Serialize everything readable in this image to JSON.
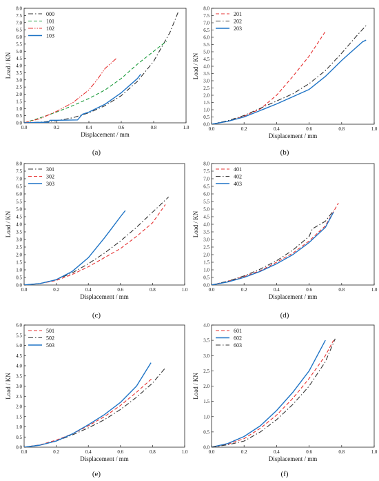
{
  "figure": {
    "panel_labels": [
      "(a)",
      "(b)",
      "(c)",
      "(d)",
      "(e)",
      "(f)"
    ]
  },
  "chart_data": [
    {
      "panel": "(a)",
      "type": "line",
      "xlabel": "Displacement / mm",
      "ylabel": "Load / KN",
      "xlim": [
        0,
        1.0
      ],
      "ylim": [
        0,
        8.0
      ],
      "xticks": [
        "0.0",
        "0.2",
        "0.4",
        "0.6",
        "0.8",
        "1.0"
      ],
      "yticks": [
        "0.0",
        "0.5",
        "1.0",
        "1.5",
        "2.0",
        "2.5",
        "3.0",
        "3.5",
        "4.0",
        "4.5",
        "5.0",
        "5.5",
        "6.0",
        "6.5",
        "7.0",
        "7.5",
        "8.0"
      ],
      "grid": false,
      "legend_position": "top-left",
      "series": [
        {
          "name": "000",
          "color": "#333333",
          "dash": "dashdot",
          "points": [
            [
              0,
              0
            ],
            [
              0.1,
              0.05
            ],
            [
              0.2,
              0.15
            ],
            [
              0.3,
              0.35
            ],
            [
              0.4,
              0.7
            ],
            [
              0.5,
              1.2
            ],
            [
              0.6,
              1.9
            ],
            [
              0.7,
              2.9
            ],
            [
              0.8,
              4.3
            ],
            [
              0.9,
              6.3
            ],
            [
              0.95,
              7.7
            ]
          ]
        },
        {
          "name": "101",
          "color": "#1a9a3a",
          "dash": "dashed",
          "points": [
            [
              0,
              0
            ],
            [
              0.1,
              0.35
            ],
            [
              0.2,
              0.75
            ],
            [
              0.3,
              1.2
            ],
            [
              0.4,
              1.7
            ],
            [
              0.5,
              2.3
            ],
            [
              0.6,
              3.1
            ],
            [
              0.7,
              4.1
            ],
            [
              0.8,
              5.0
            ],
            [
              0.88,
              5.7
            ]
          ]
        },
        {
          "name": "102",
          "color": "#e63030",
          "dash": "dashdotdot",
          "points": [
            [
              0,
              0
            ],
            [
              0.1,
              0.3
            ],
            [
              0.2,
              0.8
            ],
            [
              0.3,
              1.4
            ],
            [
              0.4,
              2.3
            ],
            [
              0.45,
              3.0
            ],
            [
              0.5,
              3.8
            ],
            [
              0.57,
              4.5
            ]
          ]
        },
        {
          "name": "103",
          "color": "#1f74c6",
          "dash": "solid",
          "points": [
            [
              0,
              0
            ],
            [
              0.15,
              0.05
            ],
            [
              0.16,
              0.18
            ],
            [
              0.2,
              0.18
            ],
            [
              0.33,
              0.2
            ],
            [
              0.36,
              0.6
            ],
            [
              0.4,
              0.75
            ],
            [
              0.5,
              1.3
            ],
            [
              0.6,
              2.1
            ],
            [
              0.7,
              3.1
            ],
            [
              0.72,
              3.4
            ]
          ]
        }
      ]
    },
    {
      "panel": "(b)",
      "type": "line",
      "xlabel": "Displacement / mm",
      "ylabel": "Load / KN",
      "xlim": [
        0,
        1.0
      ],
      "ylim": [
        0,
        8.0
      ],
      "xticks": [
        "0.0",
        "0.2",
        "0.4",
        "0.6",
        "0.8",
        "1.0"
      ],
      "yticks": [
        "0.0",
        "0.5",
        "1.0",
        "1.5",
        "2.0",
        "2.5",
        "3.0",
        "3.5",
        "4.0",
        "4.5",
        "5.0",
        "5.5",
        "6.0",
        "6.5",
        "7.0",
        "7.5",
        "8.0"
      ],
      "grid": false,
      "legend_position": "top-left",
      "series": [
        {
          "name": "201",
          "color": "#e63030",
          "dash": "dashed",
          "points": [
            [
              0,
              0
            ],
            [
              0.1,
              0.2
            ],
            [
              0.2,
              0.55
            ],
            [
              0.3,
              1.05
            ],
            [
              0.4,
              2.0
            ],
            [
              0.5,
              3.3
            ],
            [
              0.6,
              4.7
            ],
            [
              0.7,
              6.4
            ]
          ]
        },
        {
          "name": "202",
          "color": "#333333",
          "dash": "dashdot",
          "points": [
            [
              0,
              0
            ],
            [
              0.1,
              0.25
            ],
            [
              0.2,
              0.6
            ],
            [
              0.3,
              1.1
            ],
            [
              0.4,
              1.6
            ],
            [
              0.5,
              2.1
            ],
            [
              0.6,
              2.8
            ],
            [
              0.7,
              3.7
            ],
            [
              0.8,
              4.9
            ],
            [
              0.9,
              6.2
            ],
            [
              0.95,
              6.8
            ]
          ]
        },
        {
          "name": "203",
          "color": "#1f74c6",
          "dash": "solid",
          "points": [
            [
              0,
              0
            ],
            [
              0.1,
              0.2
            ],
            [
              0.2,
              0.5
            ],
            [
              0.3,
              0.95
            ],
            [
              0.4,
              1.4
            ],
            [
              0.5,
              1.9
            ],
            [
              0.6,
              2.4
            ],
            [
              0.7,
              3.3
            ],
            [
              0.8,
              4.4
            ],
            [
              0.9,
              5.4
            ],
            [
              0.93,
              5.7
            ],
            [
              0.95,
              5.8
            ]
          ]
        }
      ]
    },
    {
      "panel": "(c)",
      "type": "line",
      "xlabel": "Displacement / mm",
      "ylabel": "Load / KN",
      "xlim": [
        0,
        1.0
      ],
      "ylim": [
        0,
        8.0
      ],
      "xticks": [
        "0.0",
        "0.2",
        "0.4",
        "0.6",
        "0.8",
        "1.0"
      ],
      "yticks": [
        "0.0",
        "0.5",
        "1.0",
        "1.5",
        "2.0",
        "2.5",
        "3.0",
        "3.5",
        "4.0",
        "4.5",
        "5.0",
        "5.5",
        "6.0",
        "6.5",
        "7.0",
        "7.5",
        "8.0"
      ],
      "grid": false,
      "legend_position": "top-left",
      "series": [
        {
          "name": "301",
          "color": "#333333",
          "dash": "dashdot",
          "points": [
            [
              0,
              0
            ],
            [
              0.1,
              0.1
            ],
            [
              0.2,
              0.35
            ],
            [
              0.3,
              0.8
            ],
            [
              0.4,
              1.4
            ],
            [
              0.5,
              2.1
            ],
            [
              0.6,
              2.9
            ],
            [
              0.7,
              3.8
            ],
            [
              0.8,
              4.8
            ],
            [
              0.9,
              5.8
            ]
          ]
        },
        {
          "name": "302",
          "color": "#e63030",
          "dash": "dashed",
          "points": [
            [
              0,
              0
            ],
            [
              0.1,
              0.1
            ],
            [
              0.2,
              0.3
            ],
            [
              0.3,
              0.7
            ],
            [
              0.4,
              1.2
            ],
            [
              0.5,
              1.8
            ],
            [
              0.6,
              2.4
            ],
            [
              0.7,
              3.2
            ],
            [
              0.8,
              4.1
            ],
            [
              0.88,
              5.3
            ]
          ]
        },
        {
          "name": "303",
          "color": "#1f74c6",
          "dash": "solid",
          "points": [
            [
              0,
              0
            ],
            [
              0.1,
              0.1
            ],
            [
              0.2,
              0.35
            ],
            [
              0.3,
              0.9
            ],
            [
              0.4,
              1.8
            ],
            [
              0.5,
              3.1
            ],
            [
              0.55,
              3.8
            ],
            [
              0.6,
              4.5
            ],
            [
              0.63,
              4.9
            ]
          ]
        }
      ]
    },
    {
      "panel": "(d)",
      "type": "line",
      "xlabel": "Displacement / mm",
      "ylabel": "Load / KN",
      "xlim": [
        0,
        1.0
      ],
      "ylim": [
        0,
        8.0
      ],
      "xticks": [
        "0.0",
        "0.2",
        "0.4",
        "0.6",
        "0.8",
        "1.0"
      ],
      "yticks": [
        "0.0",
        "0.5",
        "1.0",
        "1.5",
        "2.0",
        "2.5",
        "3.0",
        "3.5",
        "4.0",
        "4.5",
        "5.0",
        "5.5",
        "6.0",
        "6.5",
        "7.0",
        "7.5",
        "8.0"
      ],
      "grid": false,
      "legend_position": "top-left",
      "series": [
        {
          "name": "401",
          "color": "#e63030",
          "dash": "dashed",
          "points": [
            [
              0,
              0
            ],
            [
              0.1,
              0.25
            ],
            [
              0.2,
              0.55
            ],
            [
              0.3,
              0.95
            ],
            [
              0.4,
              1.5
            ],
            [
              0.5,
              2.1
            ],
            [
              0.6,
              2.9
            ],
            [
              0.7,
              3.9
            ],
            [
              0.78,
              5.4
            ]
          ]
        },
        {
          "name": "402",
          "color": "#333333",
          "dash": "dashdot",
          "points": [
            [
              0,
              0
            ],
            [
              0.1,
              0.25
            ],
            [
              0.2,
              0.6
            ],
            [
              0.3,
              1.05
            ],
            [
              0.4,
              1.6
            ],
            [
              0.5,
              2.3
            ],
            [
              0.6,
              3.2
            ],
            [
              0.62,
              3.7
            ],
            [
              0.7,
              4.2
            ],
            [
              0.75,
              4.9
            ]
          ]
        },
        {
          "name": "403",
          "color": "#1f74c6",
          "dash": "solid",
          "points": [
            [
              0,
              0
            ],
            [
              0.1,
              0.2
            ],
            [
              0.2,
              0.5
            ],
            [
              0.3,
              0.9
            ],
            [
              0.4,
              1.4
            ],
            [
              0.5,
              2.0
            ],
            [
              0.6,
              2.8
            ],
            [
              0.7,
              3.8
            ],
            [
              0.75,
              4.8
            ]
          ]
        }
      ]
    },
    {
      "panel": "(e)",
      "type": "line",
      "xlabel": "Displacement / mm",
      "ylabel": "Load / KN",
      "xlim": [
        0,
        1.0
      ],
      "ylim": [
        0,
        6.0
      ],
      "xticks": [
        "0.0",
        "0.2",
        "0.4",
        "0.6",
        "0.8",
        "1.0"
      ],
      "yticks": [
        "0.0",
        "0.5",
        "1.0",
        "1.5",
        "2.0",
        "2.5",
        "3.0",
        "3.5",
        "4.0",
        "4.5",
        "5.0",
        "5.5",
        "6.0"
      ],
      "grid": false,
      "legend_position": "top-left",
      "series": [
        {
          "name": "501",
          "color": "#e63030",
          "dash": "dashed",
          "points": [
            [
              0,
              0
            ],
            [
              0.1,
              0.12
            ],
            [
              0.2,
              0.35
            ],
            [
              0.3,
              0.65
            ],
            [
              0.4,
              1.05
            ],
            [
              0.5,
              1.5
            ],
            [
              0.6,
              2.05
            ],
            [
              0.7,
              2.7
            ],
            [
              0.8,
              3.4
            ]
          ]
        },
        {
          "name": "502",
          "color": "#333333",
          "dash": "dashdot",
          "points": [
            [
              0,
              0
            ],
            [
              0.1,
              0.1
            ],
            [
              0.2,
              0.3
            ],
            [
              0.3,
              0.6
            ],
            [
              0.4,
              0.95
            ],
            [
              0.5,
              1.35
            ],
            [
              0.6,
              1.85
            ],
            [
              0.7,
              2.45
            ],
            [
              0.8,
              3.15
            ],
            [
              0.88,
              3.9
            ]
          ]
        },
        {
          "name": "503",
          "color": "#1f74c6",
          "dash": "solid",
          "points": [
            [
              0,
              0
            ],
            [
              0.1,
              0.1
            ],
            [
              0.2,
              0.3
            ],
            [
              0.3,
              0.65
            ],
            [
              0.4,
              1.1
            ],
            [
              0.5,
              1.6
            ],
            [
              0.6,
              2.2
            ],
            [
              0.7,
              3.0
            ],
            [
              0.79,
              4.15
            ]
          ]
        }
      ]
    },
    {
      "panel": "(f)",
      "type": "line",
      "xlabel": "Displacement / mm",
      "ylabel": "Load / KN",
      "xlim": [
        0,
        1.0
      ],
      "ylim": [
        0,
        4.0
      ],
      "xticks": [
        "0.0",
        "0.2",
        "0.4",
        "0.6",
        "0.8",
        "1.0"
      ],
      "yticks": [
        "0.0",
        "0.5",
        "1.0",
        "1.5",
        "2.0",
        "2.5",
        "3.0",
        "3.5",
        "4.0"
      ],
      "grid": false,
      "legend_position": "top-left",
      "series": [
        {
          "name": "601",
          "color": "#e63030",
          "dash": "dashed",
          "points": [
            [
              0,
              0
            ],
            [
              0.1,
              0.1
            ],
            [
              0.2,
              0.28
            ],
            [
              0.3,
              0.62
            ],
            [
              0.4,
              1.05
            ],
            [
              0.5,
              1.6
            ],
            [
              0.6,
              2.25
            ],
            [
              0.7,
              3.0
            ],
            [
              0.75,
              3.5
            ]
          ]
        },
        {
          "name": "602",
          "color": "#1f74c6",
          "dash": "solid",
          "points": [
            [
              0,
              0
            ],
            [
              0.1,
              0.12
            ],
            [
              0.2,
              0.35
            ],
            [
              0.3,
              0.7
            ],
            [
              0.4,
              1.2
            ],
            [
              0.5,
              1.8
            ],
            [
              0.6,
              2.5
            ],
            [
              0.7,
              3.5
            ]
          ]
        },
        {
          "name": "603",
          "color": "#333333",
          "dash": "dashdot",
          "points": [
            [
              0,
              0
            ],
            [
              0.1,
              0.08
            ],
            [
              0.2,
              0.2
            ],
            [
              0.3,
              0.5
            ],
            [
              0.4,
              0.9
            ],
            [
              0.5,
              1.4
            ],
            [
              0.6,
              2.0
            ],
            [
              0.7,
              2.8
            ],
            [
              0.76,
              3.55
            ]
          ]
        }
      ]
    }
  ]
}
